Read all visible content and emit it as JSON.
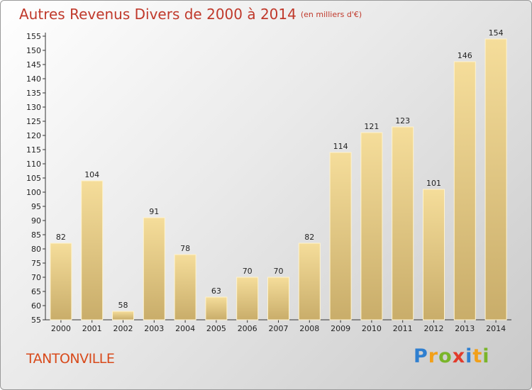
{
  "title": "Autres Revenus Divers de 2000 à 2014",
  "unit_note": "(en milliers d'€)",
  "city": "TANTONVILLE",
  "logo_letters": [
    "P",
    "r",
    "o",
    "x",
    "i",
    "t",
    "i"
  ],
  "colors": {
    "title": "#c0392b",
    "bar_light": "#f5dd9a",
    "bar_dark": "#c9ad6a",
    "axis": "#333333"
  },
  "chart_data": {
    "type": "bar",
    "categories": [
      "2000",
      "2001",
      "2002",
      "2003",
      "2004",
      "2005",
      "2006",
      "2007",
      "2008",
      "2009",
      "2010",
      "2011",
      "2012",
      "2013",
      "2014"
    ],
    "values": [
      82,
      104,
      58,
      91,
      78,
      63,
      70,
      70,
      82,
      114,
      121,
      123,
      101,
      146,
      154
    ],
    "ylim": [
      55,
      155
    ],
    "ytick_step": 5,
    "grid": false,
    "data_labels": true
  }
}
